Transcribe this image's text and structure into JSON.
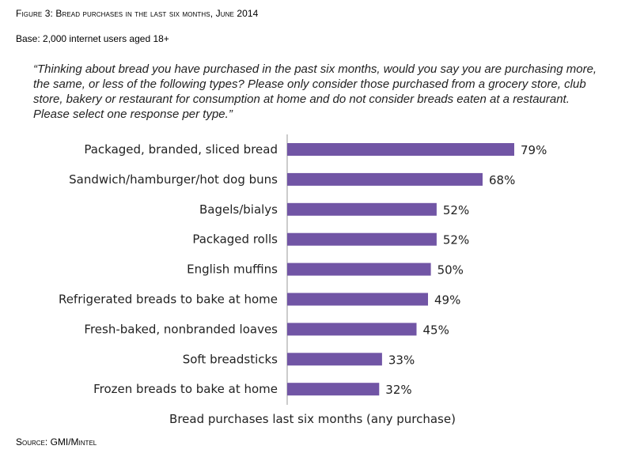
{
  "figure_title": "Figure 3: Bread purchases in the last six months, June 2014",
  "base": "Base: 2,000 internet users aged 18+",
  "question": "“Thinking about bread you have purchased in the past six months, would you say you are purchasing more, the same, or less of the following types? Please only consider those purchased from a grocery store, club store, bakery or restaurant for consumption at home and do not consider breads eaten at a restaurant. Please select one response per type.”",
  "source": "Source: GMI/Mintel",
  "chart_data": {
    "type": "bar",
    "orientation": "horizontal",
    "categories": [
      "Packaged, branded, sliced bread",
      "Sandwich/hamburger/hot dog buns",
      "Bagels/bialys",
      "Packaged rolls",
      "English muffins",
      "Refrigerated breads to bake at home",
      "Fresh-baked, nonbranded loaves",
      "Soft breadsticks",
      "Frozen breads to bake at home"
    ],
    "values": [
      79,
      68,
      52,
      52,
      50,
      49,
      45,
      33,
      32
    ],
    "value_labels": [
      "79%",
      "68%",
      "52%",
      "52%",
      "50%",
      "49%",
      "45%",
      "33%",
      "32%"
    ],
    "xlabel": "Bread purchases last six months (any purchase)",
    "xlim": [
      0,
      100
    ],
    "bar_color": "#7155a5",
    "grid": false,
    "legend": "none"
  }
}
